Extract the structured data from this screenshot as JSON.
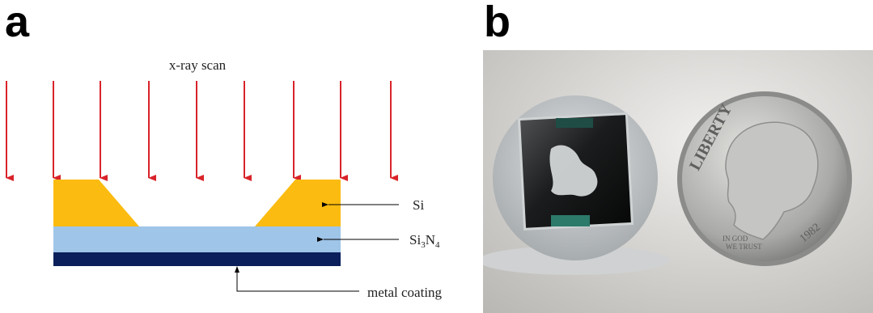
{
  "panels": {
    "a": {
      "letter": "a",
      "xray_label": "x-ray scan",
      "layers": {
        "si": "Si",
        "si3n4": {
          "base": "Si",
          "sub1": "3",
          "mid": "N",
          "sub2": "4"
        },
        "metal": "metal coating"
      },
      "colors": {
        "arrow": "#d9232a",
        "silicon": "#fbbb10",
        "nitride": "#9fc5e8",
        "metal": "#0b1f5c"
      }
    },
    "b": {
      "letter": "b",
      "coin_text": {
        "liberty": "LIBERTY",
        "motto_line1": "IN GOD",
        "motto_line2": "WE TRUST",
        "year": "1982"
      }
    }
  }
}
